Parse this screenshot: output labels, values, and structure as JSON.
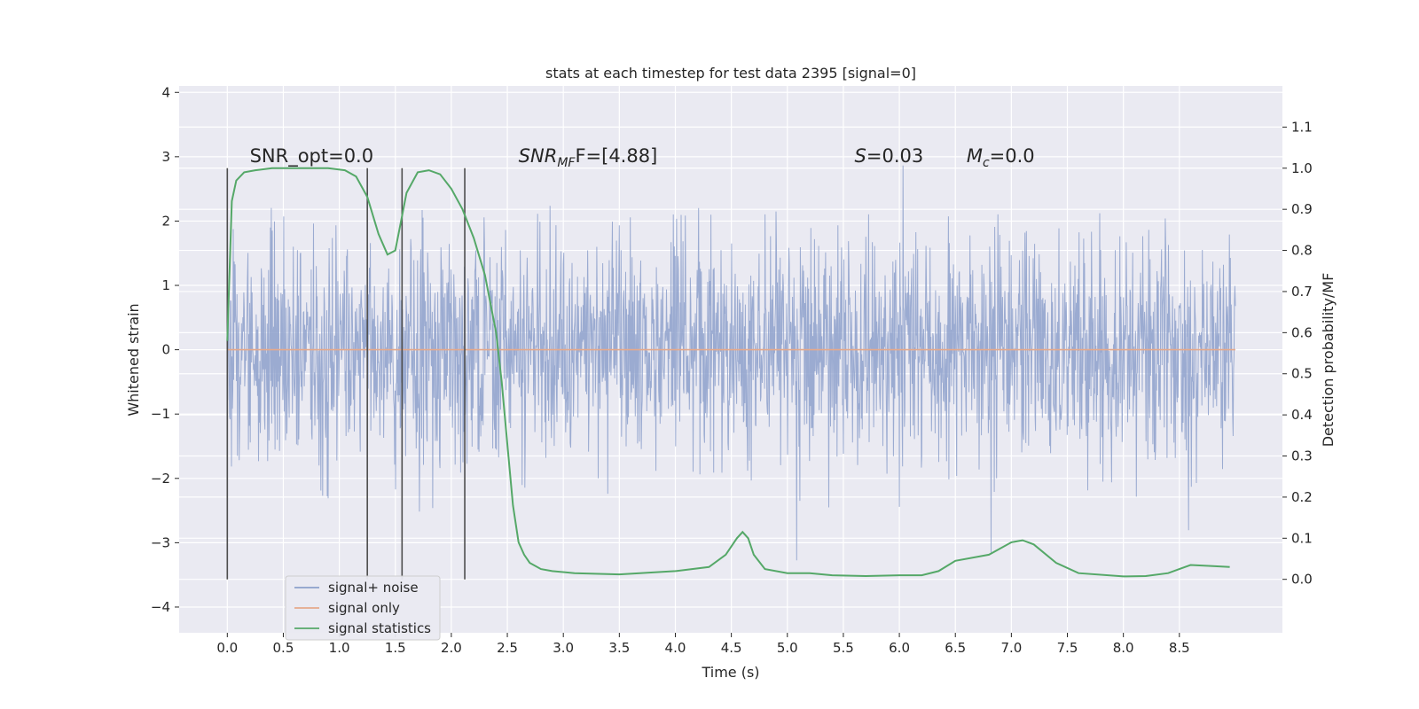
{
  "chart_data": {
    "type": "line",
    "title": "stats at each timestep for test data 2395 [signal=0]",
    "xlabel": "Time (s)",
    "ylabel": "Whitened strain",
    "y2label": "Detection probability/MF",
    "xlim": [
      -0.43,
      9.42
    ],
    "ylim": [
      -4.4,
      4.1
    ],
    "y2lim": [
      -0.13,
      1.2
    ],
    "x_ticks": [
      0.0,
      0.5,
      1.0,
      1.5,
      2.0,
      2.5,
      3.0,
      3.5,
      4.0,
      4.5,
      5.0,
      5.5,
      6.0,
      6.5,
      7.0,
      7.5,
      8.0,
      8.5
    ],
    "x_tick_labels": [
      "0.0",
      "0.5",
      "1.0",
      "1.5",
      "2.0",
      "2.5",
      "3.0",
      "3.5",
      "4.0",
      "4.5",
      "5.0",
      "5.5",
      "6.0",
      "6.5",
      "7.0",
      "7.5",
      "8.0",
      "8.5"
    ],
    "y_ticks": [
      4,
      3,
      2,
      1,
      0,
      -1,
      -2,
      -3,
      -4
    ],
    "y_tick_labels": [
      "4",
      "3",
      "2",
      "1",
      "0",
      "−1",
      "−2",
      "−3",
      "−4"
    ],
    "y2_ticks": [
      1.1,
      1.0,
      0.9,
      0.8,
      0.7,
      0.6,
      0.5,
      0.4,
      0.3,
      0.2,
      0.1,
      0.0
    ],
    "y2_tick_labels": [
      "1.1",
      "1.0",
      "0.9",
      "0.8",
      "0.7",
      "0.6",
      "0.5",
      "0.4",
      "0.3",
      "0.2",
      "0.1",
      "0.0"
    ],
    "grid": true,
    "legend_position": "lower-left",
    "series": [
      {
        "name": "signal+ noise",
        "color": "#8da0cb",
        "kind": "noise",
        "x_range": [
          0.0,
          9.0
        ],
        "typical_range": [
          -1.5,
          1.6
        ],
        "extreme_range": [
          -4.0,
          3.7
        ]
      },
      {
        "name": "signal only",
        "color": "#e5a98b",
        "kind": "flat",
        "x_range": [
          0.0,
          9.0
        ],
        "value": 0.0
      },
      {
        "name": "signal statistics",
        "color": "#55a868",
        "axis": "right",
        "x": [
          0.0,
          0.04,
          0.08,
          0.15,
          0.25,
          0.4,
          0.6,
          0.9,
          1.05,
          1.15,
          1.25,
          1.35,
          1.43,
          1.5,
          1.55,
          1.6,
          1.7,
          1.8,
          1.9,
          2.0,
          2.1,
          2.2,
          2.3,
          2.4,
          2.45,
          2.5,
          2.55,
          2.6,
          2.65,
          2.7,
          2.8,
          2.9,
          3.1,
          3.5,
          4.0,
          4.3,
          4.45,
          4.55,
          4.6,
          4.65,
          4.7,
          4.8,
          5.0,
          5.2,
          5.4,
          5.7,
          6.0,
          6.2,
          6.35,
          6.5,
          6.8,
          7.0,
          7.1,
          7.2,
          7.4,
          7.6,
          8.0,
          8.2,
          8.4,
          8.5,
          8.6,
          8.8,
          8.95
        ],
        "y": [
          0.58,
          0.92,
          0.97,
          0.99,
          0.995,
          1.0,
          1.0,
          1.0,
          0.995,
          0.98,
          0.93,
          0.84,
          0.79,
          0.8,
          0.87,
          0.94,
          0.99,
          0.995,
          0.985,
          0.95,
          0.9,
          0.83,
          0.74,
          0.6,
          0.48,
          0.33,
          0.18,
          0.09,
          0.06,
          0.04,
          0.025,
          0.02,
          0.015,
          0.012,
          0.02,
          0.03,
          0.06,
          0.1,
          0.115,
          0.1,
          0.06,
          0.025,
          0.015,
          0.015,
          0.01,
          0.008,
          0.01,
          0.01,
          0.02,
          0.045,
          0.06,
          0.09,
          0.095,
          0.085,
          0.04,
          0.015,
          0.007,
          0.008,
          0.015,
          0.025,
          0.035,
          0.032,
          0.03
        ]
      }
    ],
    "vlines": [
      0.0,
      1.25,
      1.56,
      2.12
    ],
    "vline_color": "#4d4d4d",
    "annotations": [
      {
        "key": "snr_opt",
        "text": "SNR_opt=0.0",
        "x": 0.2,
        "y": 3.0
      },
      {
        "key": "snr_mf",
        "text_main": "SNR",
        "text_sub": "MF",
        "text_rest": "F=[4.88]",
        "x": 2.6,
        "y": 3.0
      },
      {
        "key": "s",
        "text_main": "S",
        "text_rest": "=0.03",
        "x": 5.6,
        "y": 3.0
      },
      {
        "key": "mc",
        "text_main": "M",
        "text_sub": "c",
        "text_rest": "=0.0",
        "x": 6.6,
        "y": 3.0
      }
    ]
  }
}
